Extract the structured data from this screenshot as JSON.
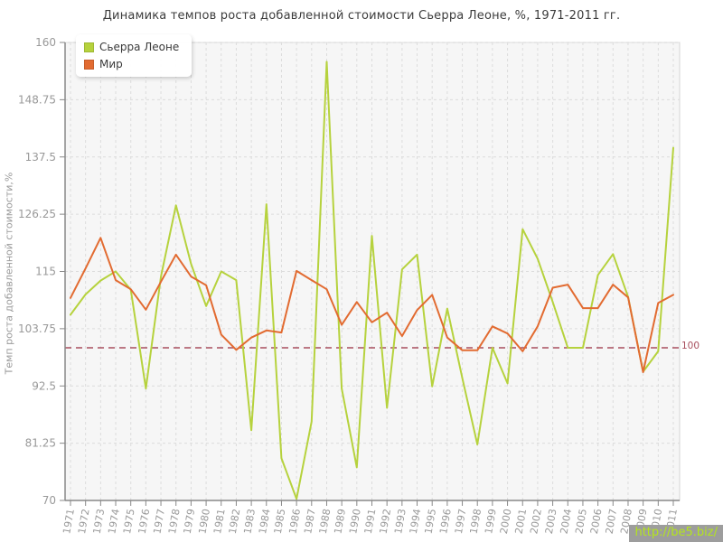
{
  "chart_data": {
    "type": "line",
    "title": "Динамика темпов роста добавленной стоимости Сьерра Леоне, %, 1971-2011 гг.",
    "ylabel": "Темп роста добавленной стоимости,%",
    "xlabel": "",
    "x": [
      "1971",
      "1972",
      "1973",
      "1974",
      "1975",
      "1976",
      "1977",
      "1978",
      "1979",
      "1980",
      "1981",
      "1982",
      "1983",
      "1984",
      "1985",
      "1986",
      "1987",
      "1988",
      "1989",
      "1990",
      "1991",
      "1992",
      "1993",
      "1994",
      "1995",
      "1996",
      "1997",
      "1998",
      "1999",
      "2000",
      "2001",
      "2002",
      "2003",
      "2004",
      "2005",
      "2006",
      "2007",
      "2008",
      "2009",
      "2010",
      "2011"
    ],
    "ylim": [
      70,
      160
    ],
    "yticks": [
      "70",
      "81.25",
      "92.5",
      "103.75",
      "115",
      "126.25",
      "137.5",
      "148.75",
      "160"
    ],
    "grid": true,
    "legend_position": "top-left",
    "refline": {
      "value": 100,
      "label": "100",
      "color": "#a84f5e"
    },
    "series": [
      {
        "name": "Сьерра Леоне",
        "color": "#b6d23d",
        "values": [
          106.5,
          110.5,
          113.2,
          115.0,
          111.4,
          92.0,
          114.0,
          128.0,
          116.5,
          108.2,
          115.0,
          113.3,
          83.8,
          128.2,
          78.3,
          70.3,
          85.5,
          156.2,
          92.0,
          76.5,
          122.0,
          88.2,
          115.4,
          118.3,
          92.4,
          107.7,
          94.0,
          81.0,
          100.0,
          93.0,
          123.3,
          117.5,
          109.0,
          100.0,
          100.0,
          114.3,
          118.4,
          110.0,
          95.3,
          99.3,
          139.3
        ]
      },
      {
        "name": "Мир",
        "color": "#e26b31",
        "values": [
          109.8,
          115.6,
          121.6,
          113.3,
          111.5,
          107.5,
          113.0,
          118.3,
          114.0,
          112.3,
          102.6,
          99.6,
          102.0,
          103.4,
          103.0,
          115.1,
          113.3,
          111.5,
          104.5,
          109.0,
          105.0,
          106.9,
          102.3,
          107.4,
          110.4,
          102.0,
          99.5,
          99.5,
          104.2,
          102.8,
          99.3,
          104.2,
          111.8,
          112.4,
          107.8,
          107.8,
          112.4,
          109.9,
          95.2,
          108.8,
          110.4
        ]
      }
    ],
    "grid_color": "#dcdcdc",
    "axis_color": "#888888",
    "tick_label_color": "#999999",
    "plot_background": "#f6f6f6"
  },
  "watermark": {
    "text": "http://be5.biz/",
    "color": "#b4e51d",
    "background": "#9d9d9d"
  }
}
